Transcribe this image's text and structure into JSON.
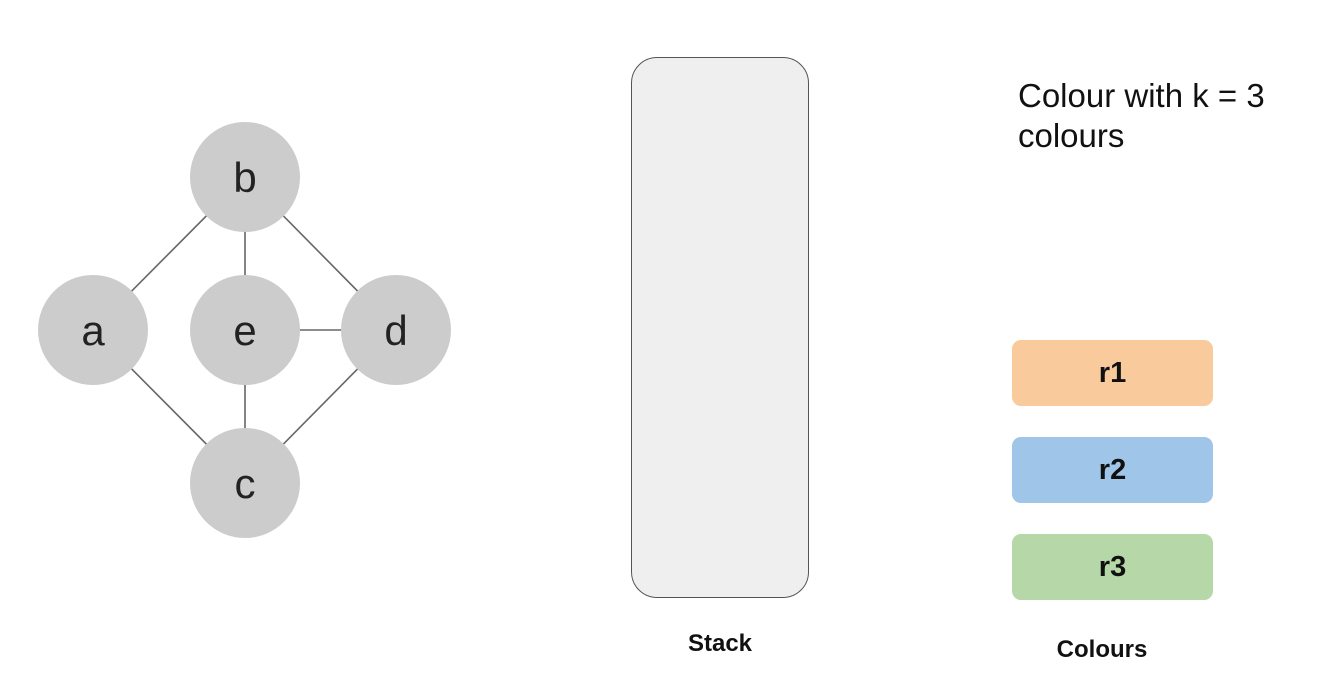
{
  "graph": {
    "nodes": [
      {
        "id": "a",
        "label": "a"
      },
      {
        "id": "b",
        "label": "b"
      },
      {
        "id": "c",
        "label": "c"
      },
      {
        "id": "d",
        "label": "d"
      },
      {
        "id": "e",
        "label": "e"
      }
    ],
    "edges": [
      [
        "b",
        "a"
      ],
      [
        "b",
        "e"
      ],
      [
        "b",
        "d"
      ],
      [
        "a",
        "c"
      ],
      [
        "e",
        "d"
      ],
      [
        "e",
        "c"
      ],
      [
        "d",
        "c"
      ]
    ],
    "node_color": "#cccccc",
    "edge_color": "#666666"
  },
  "stack": {
    "label": "Stack",
    "fill_color": "#efefef"
  },
  "instruction": {
    "text": "Colour with k = 3 colours"
  },
  "colours": {
    "label": "Colours",
    "items": [
      {
        "name": "r1",
        "color": "#f9cb9c"
      },
      {
        "name": "r2",
        "color": "#9fc5e8"
      },
      {
        "name": "r3",
        "color": "#b6d7a8"
      }
    ]
  }
}
